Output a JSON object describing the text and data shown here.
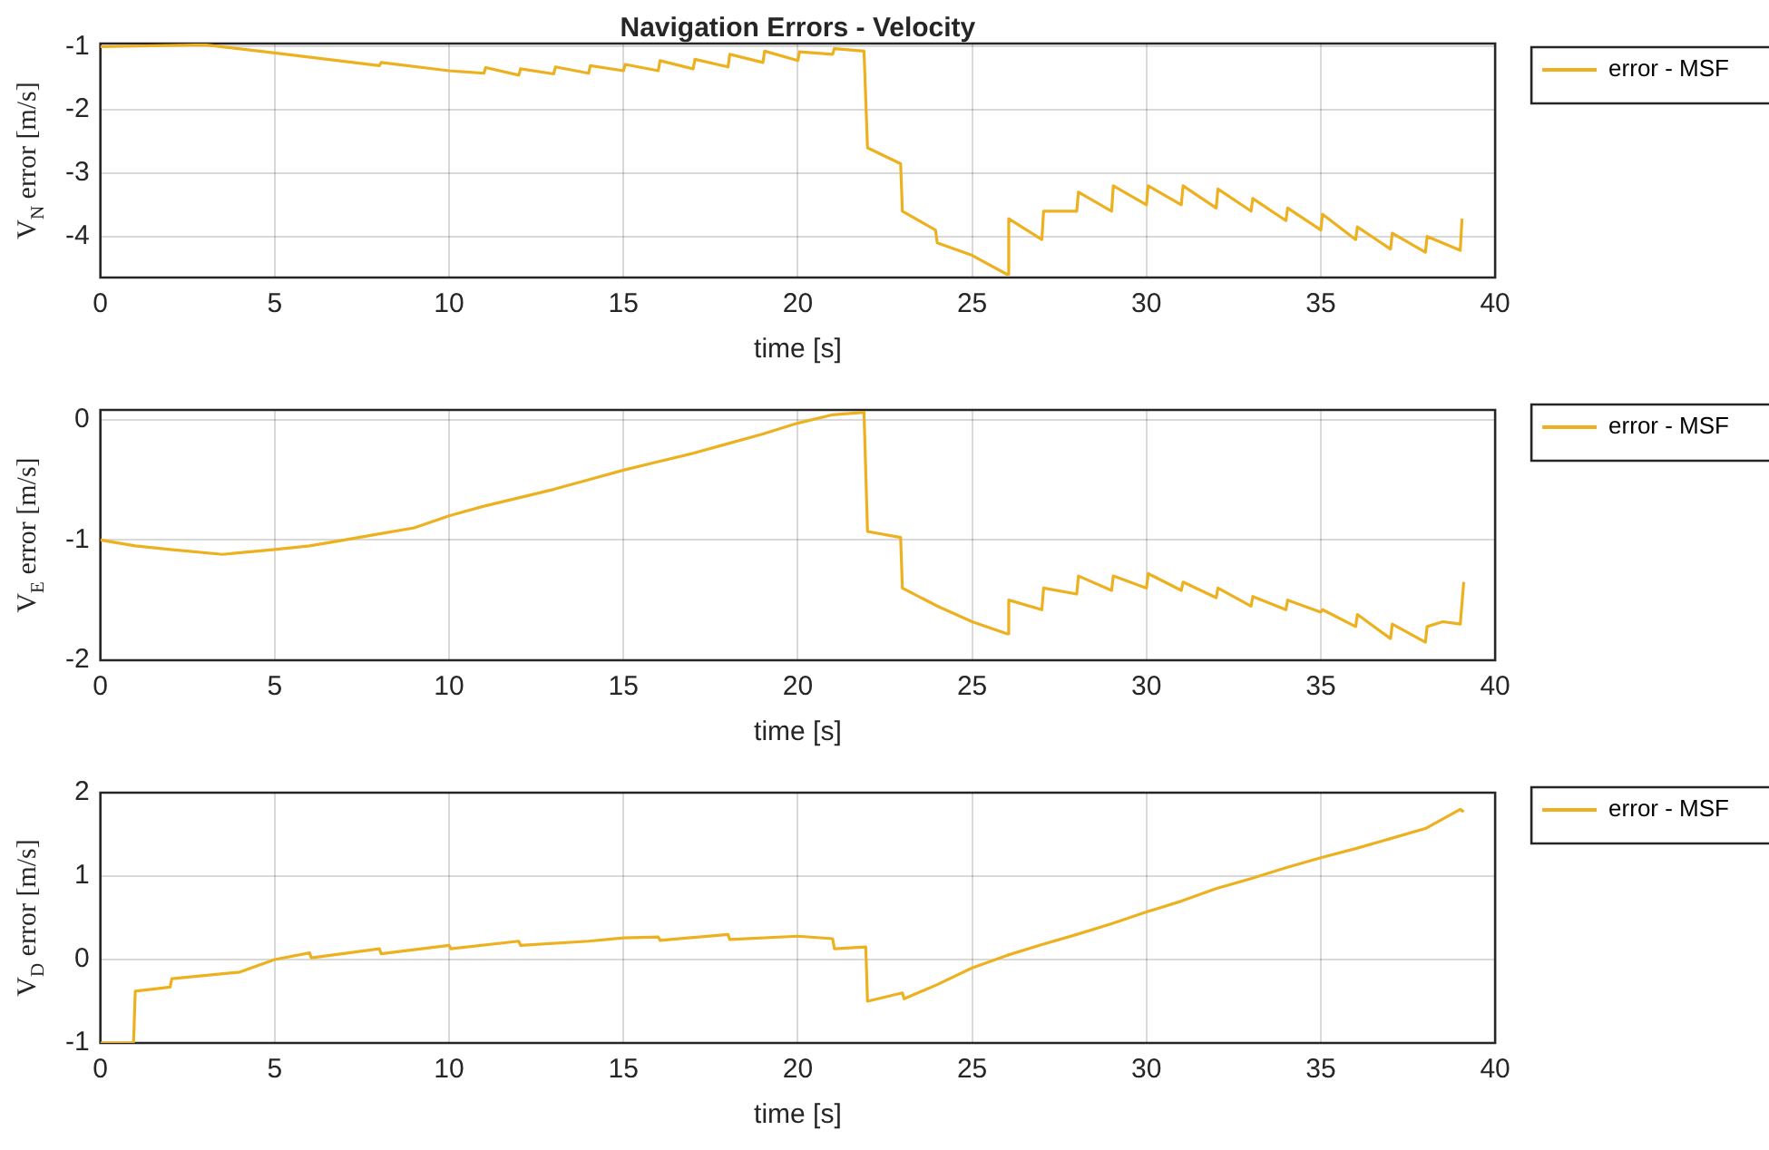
{
  "chart_data": [
    {
      "type": "line",
      "title": "Navigation Errors - Velocity",
      "xlabel": "time [s]",
      "ylabel": "V$_{N}$ error [m/s]",
      "xlim": [
        0,
        40
      ],
      "xticks": [
        0,
        5,
        10,
        15,
        20,
        25,
        30,
        35,
        40
      ],
      "ylim": [
        -4.65,
        -0.95
      ],
      "yticks": [
        -4,
        -3,
        -2,
        -1
      ],
      "grid": true,
      "legend": "top right",
      "series": [
        {
          "name": "error - MSF",
          "color": "#edb120",
          "x": [
            0,
            3,
            5,
            8,
            8.05,
            10,
            11,
            11.05,
            12,
            12.05,
            13,
            13.05,
            14,
            14.05,
            15,
            15.05,
            16,
            16.05,
            17,
            17.05,
            18,
            18.05,
            19,
            19.05,
            20,
            20.05,
            21,
            21.05,
            21.9,
            22,
            22.95,
            23,
            23.95,
            24,
            25,
            26,
            26.05,
            27,
            27.05,
            28,
            28.05,
            29,
            29.05,
            30,
            30.05,
            31,
            31.05,
            32,
            32.05,
            33,
            33.05,
            34,
            34.05,
            35,
            35.05,
            36,
            36.05,
            37,
            37.05,
            38,
            38.05,
            39,
            39.05
          ],
          "values": [
            -1.0,
            -0.97,
            -1.1,
            -1.3,
            -1.25,
            -1.38,
            -1.42,
            -1.33,
            -1.45,
            -1.35,
            -1.43,
            -1.32,
            -1.42,
            -1.3,
            -1.38,
            -1.28,
            -1.38,
            -1.22,
            -1.35,
            -1.2,
            -1.32,
            -1.12,
            -1.25,
            -1.07,
            -1.22,
            -1.08,
            -1.12,
            -1.03,
            -1.07,
            -2.6,
            -2.85,
            -3.6,
            -3.9,
            -4.1,
            -4.3,
            -4.6,
            -3.72,
            -4.05,
            -3.6,
            -3.6,
            -3.3,
            -3.6,
            -3.2,
            -3.5,
            -3.2,
            -3.5,
            -3.2,
            -3.55,
            -3.25,
            -3.6,
            -3.4,
            -3.75,
            -3.55,
            -3.9,
            -3.65,
            -4.05,
            -3.85,
            -4.2,
            -3.95,
            -4.25,
            -4.0,
            -4.22,
            -3.72
          ]
        }
      ]
    },
    {
      "type": "line",
      "xlabel": "time [s]",
      "ylabel": "V$_{E}$ error [m/s]",
      "xlim": [
        0,
        40
      ],
      "xticks": [
        0,
        5,
        10,
        15,
        20,
        25,
        30,
        35,
        40
      ],
      "ylim": [
        -2,
        0.08
      ],
      "yticks": [
        -2,
        -1,
        0
      ],
      "grid": true,
      "legend": "top right",
      "series": [
        {
          "name": "error - MSF",
          "color": "#edb120",
          "x": [
            0,
            1,
            2,
            3.5,
            5,
            6,
            7,
            8,
            9,
            10,
            11,
            12,
            13,
            14,
            15,
            16,
            17,
            18,
            19,
            20,
            21,
            21.9,
            22,
            22.95,
            23,
            24,
            25,
            26,
            26.05,
            27,
            27.05,
            28,
            28.05,
            29,
            29.05,
            30,
            30.05,
            31,
            31.05,
            32,
            32.05,
            33,
            33.05,
            34,
            34.05,
            35,
            35.05,
            36,
            36.05,
            37,
            37.05,
            38,
            38.05,
            38.5,
            39,
            39.1
          ],
          "values": [
            -1.0,
            -1.05,
            -1.08,
            -1.12,
            -1.08,
            -1.05,
            -1.0,
            -0.95,
            -0.9,
            -0.8,
            -0.72,
            -0.65,
            -0.58,
            -0.5,
            -0.42,
            -0.35,
            -0.28,
            -0.2,
            -0.12,
            -0.03,
            0.04,
            0.06,
            -0.93,
            -0.98,
            -1.4,
            -1.55,
            -1.68,
            -1.78,
            -1.5,
            -1.58,
            -1.4,
            -1.45,
            -1.3,
            -1.42,
            -1.3,
            -1.4,
            -1.28,
            -1.42,
            -1.35,
            -1.48,
            -1.4,
            -1.55,
            -1.47,
            -1.58,
            -1.5,
            -1.6,
            -1.58,
            -1.72,
            -1.62,
            -1.82,
            -1.7,
            -1.85,
            -1.72,
            -1.68,
            -1.7,
            -1.35
          ]
        }
      ]
    },
    {
      "type": "line",
      "xlabel": "time [s]",
      "ylabel": "V$_{D}$ error [m/s]",
      "xlim": [
        0,
        40
      ],
      "xticks": [
        0,
        5,
        10,
        15,
        20,
        25,
        30,
        35,
        40
      ],
      "ylim": [
        -1,
        2
      ],
      "yticks": [
        -1,
        0,
        1,
        2
      ],
      "grid": true,
      "legend": "top right",
      "series": [
        {
          "name": "error - MSF",
          "color": "#edb120",
          "x": [
            0,
            0.95,
            1,
            2,
            2.05,
            4,
            5,
            6,
            6.05,
            8,
            8.05,
            10,
            10.05,
            12,
            12.05,
            14,
            15,
            16,
            16.05,
            18,
            18.05,
            20,
            21,
            21.05,
            21.95,
            22,
            23,
            23.05,
            24,
            25,
            26,
            27,
            28,
            29,
            30,
            31,
            32,
            33,
            34,
            35,
            36,
            37,
            38,
            39,
            39.1
          ],
          "values": [
            -1.0,
            -1.0,
            -0.38,
            -0.33,
            -0.23,
            -0.15,
            0.0,
            0.08,
            0.02,
            0.13,
            0.07,
            0.17,
            0.13,
            0.22,
            0.17,
            0.22,
            0.26,
            0.27,
            0.23,
            0.3,
            0.24,
            0.28,
            0.25,
            0.13,
            0.15,
            -0.5,
            -0.4,
            -0.47,
            -0.3,
            -0.1,
            0.05,
            0.18,
            0.3,
            0.43,
            0.57,
            0.7,
            0.85,
            0.97,
            1.1,
            1.22,
            1.33,
            1.45,
            1.57,
            1.8,
            1.77
          ]
        }
      ]
    }
  ]
}
